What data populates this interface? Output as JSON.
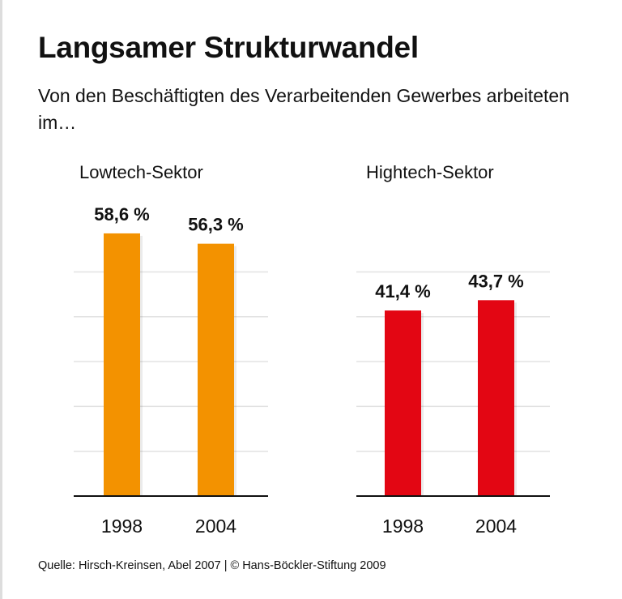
{
  "title": "Langsamer Strukturwandel",
  "subtitle": "Von den Beschäftigten des Verarbeitenden Gewerbes arbeiteten im…",
  "source": "Quelle: Hirsch-Kreinsen, Abel 2007 | © Hans-Böckler-Stiftung 2009",
  "chart_data": [
    {
      "type": "bar",
      "title": "Lowtech-Sektor",
      "categories": [
        "1998",
        "2004"
      ],
      "values": [
        58.6,
        56.3
      ],
      "labels": [
        "58,6 %",
        "56,3 %"
      ],
      "color": "#f39200",
      "ylim": [
        0,
        60
      ],
      "grid": true
    },
    {
      "type": "bar",
      "title": "Hightech-Sektor",
      "categories": [
        "1998",
        "2004"
      ],
      "values": [
        41.4,
        43.7
      ],
      "labels": [
        "41,4 %",
        "43,7 %"
      ],
      "color": "#e30613",
      "ylim": [
        0,
        60
      ],
      "grid": true
    }
  ]
}
